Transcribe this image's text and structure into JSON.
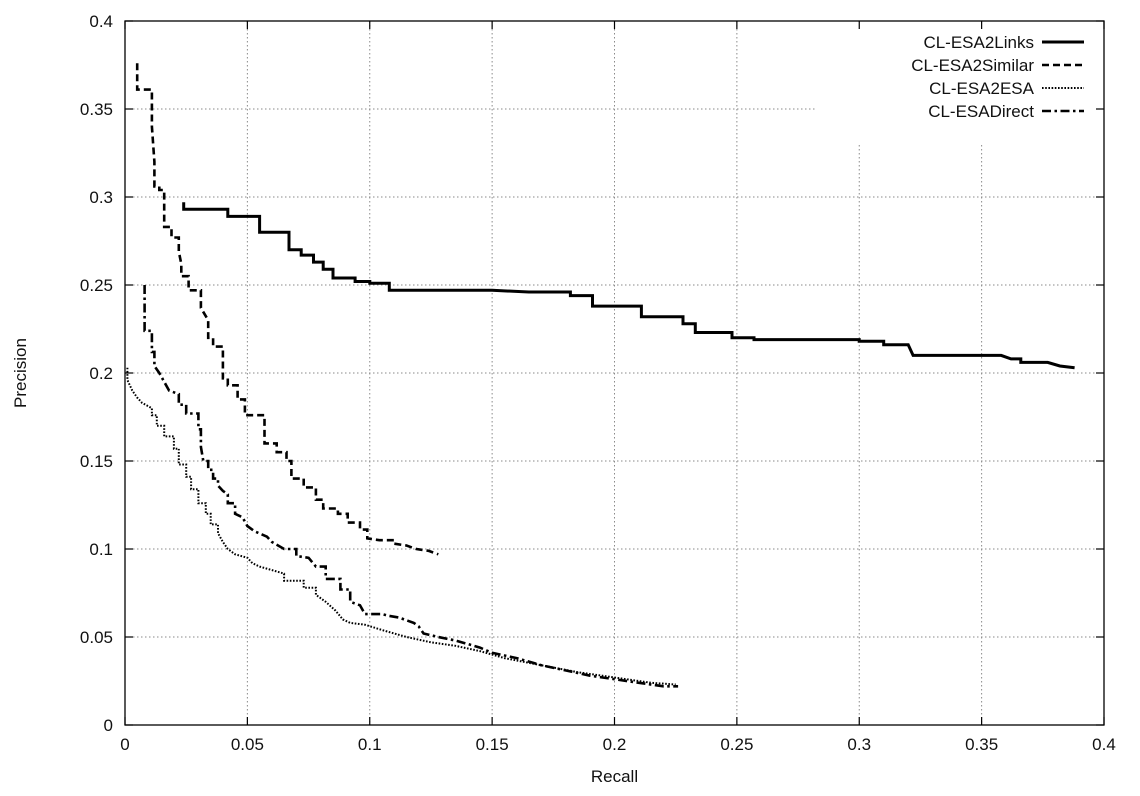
{
  "chart_data": {
    "type": "line",
    "title": "",
    "xlabel": "Recall",
    "ylabel": "Precision",
    "xlim": [
      0,
      0.4
    ],
    "ylim": [
      0,
      0.4
    ],
    "xticks": [
      0,
      0.05,
      0.1,
      0.15,
      0.2,
      0.25,
      0.3,
      0.35,
      0.4
    ],
    "xtick_labels": [
      "0",
      "0.05",
      "0.1",
      "0.15",
      "0.2",
      "0.25",
      "0.3",
      "0.35",
      "0.4"
    ],
    "yticks": [
      0,
      0.05,
      0.1,
      0.15,
      0.2,
      0.25,
      0.3,
      0.35,
      0.4
    ],
    "ytick_labels": [
      "0",
      "0.05",
      "0.1",
      "0.15",
      "0.2",
      "0.25",
      "0.3",
      "0.35",
      "0.4"
    ],
    "grid": true,
    "legend_position": "top-right",
    "series": [
      {
        "name": "CL-ESA2Links",
        "style": "solid",
        "color": "#000000",
        "points": [
          [
            0.024,
            0.297
          ],
          [
            0.024,
            0.293
          ],
          [
            0.042,
            0.293
          ],
          [
            0.042,
            0.289
          ],
          [
            0.055,
            0.289
          ],
          [
            0.055,
            0.28
          ],
          [
            0.067,
            0.28
          ],
          [
            0.067,
            0.27
          ],
          [
            0.072,
            0.27
          ],
          [
            0.072,
            0.267
          ],
          [
            0.077,
            0.267
          ],
          [
            0.077,
            0.263
          ],
          [
            0.081,
            0.263
          ],
          [
            0.081,
            0.259
          ],
          [
            0.085,
            0.259
          ],
          [
            0.085,
            0.254
          ],
          [
            0.094,
            0.254
          ],
          [
            0.094,
            0.252
          ],
          [
            0.1,
            0.252
          ],
          [
            0.1,
            0.251
          ],
          [
            0.108,
            0.251
          ],
          [
            0.108,
            0.247
          ],
          [
            0.15,
            0.247
          ],
          [
            0.165,
            0.246
          ],
          [
            0.182,
            0.246
          ],
          [
            0.182,
            0.244
          ],
          [
            0.191,
            0.244
          ],
          [
            0.191,
            0.238
          ],
          [
            0.211,
            0.238
          ],
          [
            0.211,
            0.232
          ],
          [
            0.228,
            0.232
          ],
          [
            0.228,
            0.228
          ],
          [
            0.233,
            0.228
          ],
          [
            0.233,
            0.223
          ],
          [
            0.248,
            0.223
          ],
          [
            0.248,
            0.22
          ],
          [
            0.257,
            0.22
          ],
          [
            0.257,
            0.219
          ],
          [
            0.3,
            0.219
          ],
          [
            0.3,
            0.218
          ],
          [
            0.31,
            0.218
          ],
          [
            0.31,
            0.216
          ],
          [
            0.32,
            0.216
          ],
          [
            0.322,
            0.21
          ],
          [
            0.358,
            0.21
          ],
          [
            0.362,
            0.208
          ],
          [
            0.366,
            0.208
          ],
          [
            0.366,
            0.206
          ],
          [
            0.377,
            0.206
          ],
          [
            0.382,
            0.204
          ],
          [
            0.388,
            0.203
          ]
        ]
      },
      {
        "name": "CL-ESA2Similar",
        "style": "dashed",
        "color": "#000000",
        "points": [
          [
            0.005,
            0.376
          ],
          [
            0.005,
            0.361
          ],
          [
            0.011,
            0.361
          ],
          [
            0.011,
            0.34
          ],
          [
            0.012,
            0.32
          ],
          [
            0.012,
            0.306
          ],
          [
            0.014,
            0.306
          ],
          [
            0.014,
            0.304
          ],
          [
            0.016,
            0.304
          ],
          [
            0.016,
            0.283
          ],
          [
            0.019,
            0.283
          ],
          [
            0.019,
            0.277
          ],
          [
            0.022,
            0.277
          ],
          [
            0.022,
            0.269
          ],
          [
            0.023,
            0.262
          ],
          [
            0.023,
            0.255
          ],
          [
            0.026,
            0.255
          ],
          [
            0.026,
            0.247
          ],
          [
            0.031,
            0.247
          ],
          [
            0.031,
            0.237
          ],
          [
            0.034,
            0.23
          ],
          [
            0.034,
            0.22
          ],
          [
            0.036,
            0.22
          ],
          [
            0.036,
            0.215
          ],
          [
            0.04,
            0.215
          ],
          [
            0.04,
            0.197
          ],
          [
            0.042,
            0.197
          ],
          [
            0.042,
            0.193
          ],
          [
            0.046,
            0.193
          ],
          [
            0.046,
            0.185
          ],
          [
            0.049,
            0.185
          ],
          [
            0.049,
            0.176
          ],
          [
            0.057,
            0.176
          ],
          [
            0.057,
            0.16
          ],
          [
            0.062,
            0.16
          ],
          [
            0.062,
            0.155
          ],
          [
            0.066,
            0.155
          ],
          [
            0.066,
            0.15
          ],
          [
            0.068,
            0.15
          ],
          [
            0.068,
            0.14
          ],
          [
            0.073,
            0.14
          ],
          [
            0.073,
            0.135
          ],
          [
            0.078,
            0.135
          ],
          [
            0.078,
            0.128
          ],
          [
            0.081,
            0.128
          ],
          [
            0.081,
            0.123
          ],
          [
            0.087,
            0.123
          ],
          [
            0.087,
            0.12
          ],
          [
            0.091,
            0.12
          ],
          [
            0.091,
            0.115
          ],
          [
            0.096,
            0.115
          ],
          [
            0.096,
            0.111
          ],
          [
            0.099,
            0.111
          ],
          [
            0.099,
            0.106
          ],
          [
            0.104,
            0.105
          ],
          [
            0.11,
            0.105
          ],
          [
            0.11,
            0.103
          ],
          [
            0.115,
            0.102
          ],
          [
            0.119,
            0.1
          ],
          [
            0.124,
            0.099
          ],
          [
            0.128,
            0.097
          ]
        ]
      },
      {
        "name": "CL-ESA2ESA",
        "style": "dotted",
        "color": "#000000",
        "points": [
          [
            0.001,
            0.203
          ],
          [
            0.001,
            0.196
          ],
          [
            0.003,
            0.19
          ],
          [
            0.005,
            0.186
          ],
          [
            0.007,
            0.183
          ],
          [
            0.011,
            0.18
          ],
          [
            0.011,
            0.176
          ],
          [
            0.013,
            0.176
          ],
          [
            0.013,
            0.17
          ],
          [
            0.016,
            0.17
          ],
          [
            0.016,
            0.164
          ],
          [
            0.02,
            0.164
          ],
          [
            0.02,
            0.157
          ],
          [
            0.022,
            0.157
          ],
          [
            0.022,
            0.148
          ],
          [
            0.025,
            0.148
          ],
          [
            0.025,
            0.141
          ],
          [
            0.027,
            0.141
          ],
          [
            0.027,
            0.134
          ],
          [
            0.03,
            0.134
          ],
          [
            0.03,
            0.126
          ],
          [
            0.033,
            0.126
          ],
          [
            0.033,
            0.12
          ],
          [
            0.035,
            0.12
          ],
          [
            0.035,
            0.114
          ],
          [
            0.038,
            0.114
          ],
          [
            0.038,
            0.109
          ],
          [
            0.04,
            0.104
          ],
          [
            0.042,
            0.1
          ],
          [
            0.045,
            0.097
          ],
          [
            0.05,
            0.095
          ],
          [
            0.052,
            0.092
          ],
          [
            0.055,
            0.09
          ],
          [
            0.06,
            0.088
          ],
          [
            0.065,
            0.086
          ],
          [
            0.065,
            0.082
          ],
          [
            0.073,
            0.082
          ],
          [
            0.073,
            0.078
          ],
          [
            0.078,
            0.078
          ],
          [
            0.078,
            0.074
          ],
          [
            0.082,
            0.07
          ],
          [
            0.086,
            0.065
          ],
          [
            0.089,
            0.06
          ],
          [
            0.092,
            0.058
          ],
          [
            0.098,
            0.057
          ],
          [
            0.105,
            0.054
          ],
          [
            0.115,
            0.05
          ],
          [
            0.125,
            0.047
          ],
          [
            0.135,
            0.045
          ],
          [
            0.145,
            0.042
          ],
          [
            0.155,
            0.038
          ],
          [
            0.17,
            0.034
          ],
          [
            0.185,
            0.03
          ],
          [
            0.2,
            0.027
          ],
          [
            0.215,
            0.024
          ],
          [
            0.225,
            0.023
          ]
        ]
      },
      {
        "name": "CL-ESADirect",
        "style": "dashdot",
        "color": "#000000",
        "points": [
          [
            0.008,
            0.25
          ],
          [
            0.008,
            0.238
          ],
          [
            0.008,
            0.224
          ],
          [
            0.011,
            0.224
          ],
          [
            0.011,
            0.212
          ],
          [
            0.012,
            0.212
          ],
          [
            0.012,
            0.204
          ],
          [
            0.014,
            0.2
          ],
          [
            0.016,
            0.195
          ],
          [
            0.018,
            0.19
          ],
          [
            0.022,
            0.188
          ],
          [
            0.022,
            0.182
          ],
          [
            0.025,
            0.182
          ],
          [
            0.025,
            0.177
          ],
          [
            0.03,
            0.177
          ],
          [
            0.03,
            0.168
          ],
          [
            0.031,
            0.168
          ],
          [
            0.031,
            0.158
          ],
          [
            0.032,
            0.15
          ],
          [
            0.034,
            0.15
          ],
          [
            0.034,
            0.145
          ],
          [
            0.036,
            0.145
          ],
          [
            0.036,
            0.14
          ],
          [
            0.038,
            0.14
          ],
          [
            0.038,
            0.136
          ],
          [
            0.04,
            0.133
          ],
          [
            0.042,
            0.131
          ],
          [
            0.042,
            0.126
          ],
          [
            0.045,
            0.126
          ],
          [
            0.045,
            0.12
          ],
          [
            0.048,
            0.118
          ],
          [
            0.05,
            0.113
          ],
          [
            0.053,
            0.11
          ],
          [
            0.058,
            0.107
          ],
          [
            0.06,
            0.104
          ],
          [
            0.065,
            0.1
          ],
          [
            0.07,
            0.1
          ],
          [
            0.07,
            0.096
          ],
          [
            0.075,
            0.095
          ],
          [
            0.078,
            0.09
          ],
          [
            0.082,
            0.09
          ],
          [
            0.082,
            0.083
          ],
          [
            0.088,
            0.083
          ],
          [
            0.088,
            0.077
          ],
          [
            0.092,
            0.077
          ],
          [
            0.092,
            0.07
          ],
          [
            0.096,
            0.068
          ],
          [
            0.098,
            0.063
          ],
          [
            0.105,
            0.063
          ],
          [
            0.108,
            0.062
          ],
          [
            0.112,
            0.061
          ],
          [
            0.118,
            0.058
          ],
          [
            0.12,
            0.056
          ],
          [
            0.122,
            0.052
          ],
          [
            0.128,
            0.05
          ],
          [
            0.135,
            0.048
          ],
          [
            0.14,
            0.046
          ],
          [
            0.145,
            0.044
          ],
          [
            0.15,
            0.041
          ],
          [
            0.16,
            0.038
          ],
          [
            0.17,
            0.034
          ],
          [
            0.18,
            0.031
          ],
          [
            0.19,
            0.028
          ],
          [
            0.2,
            0.026
          ],
          [
            0.21,
            0.024
          ],
          [
            0.22,
            0.022
          ],
          [
            0.226,
            0.022
          ]
        ]
      }
    ]
  }
}
